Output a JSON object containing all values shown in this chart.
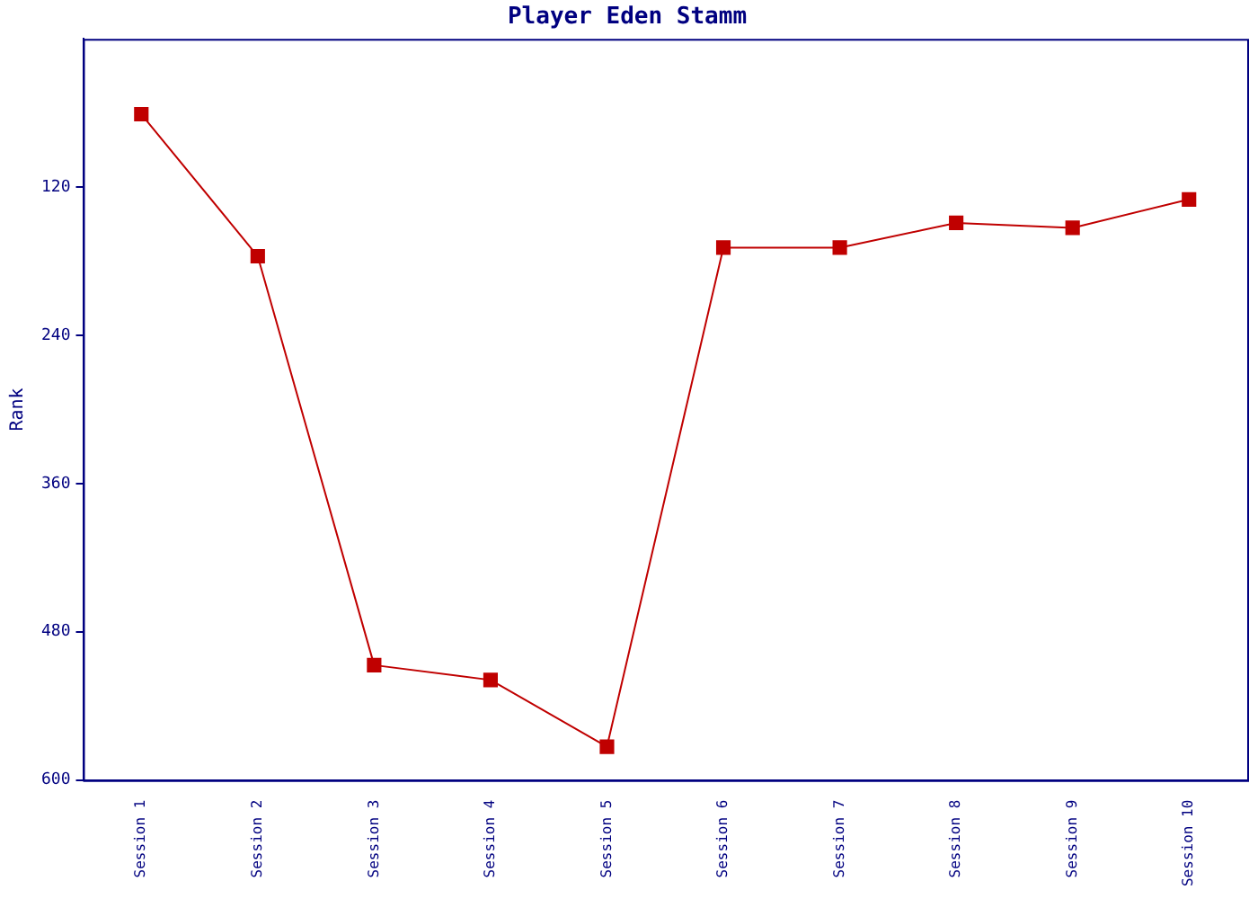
{
  "chart_data": {
    "type": "line",
    "title": "Player Eden Stamm",
    "ylabel": "Rank",
    "categories": [
      "Session 1",
      "Session 2",
      "Session 3",
      "Session 4",
      "Session 5",
      "Session 6",
      "Session 7",
      "Session 8",
      "Session 9",
      "Session 10"
    ],
    "series": [
      {
        "color": "#c00000",
        "values": [
          61,
          176,
          507,
          519,
          573,
          169,
          169,
          149,
          153,
          130
        ]
      }
    ],
    "ylim": [
      600,
      0
    ],
    "yticks": [
      120,
      240,
      360,
      480,
      600
    ],
    "grid": false,
    "legend": false,
    "marker": "square",
    "line_style": "solid"
  }
}
